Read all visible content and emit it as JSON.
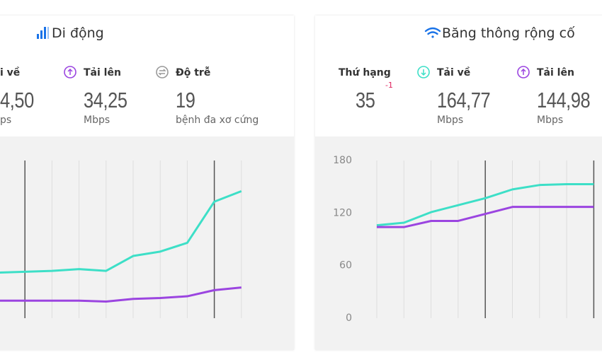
{
  "panels": [
    {
      "title": "Di động",
      "stats": [
        {
          "label": "i về",
          "value": "4,50",
          "unit": "ps"
        },
        {
          "label": "Tải lên",
          "value": "34,25",
          "unit": "Mbps"
        },
        {
          "label": "Độ trễ",
          "value": "19",
          "unit": "bệnh đa xơ cứng"
        }
      ]
    },
    {
      "title": "Băng thông rộng cố",
      "rank": {
        "label": "Thứ hạng",
        "value": "35",
        "change": "-1"
      },
      "stats": [
        {
          "label": "Tải về",
          "value": "164,77",
          "unit": "Mbps"
        },
        {
          "label": "Tải lên",
          "value": "144,98",
          "unit": "Mbps"
        }
      ]
    }
  ],
  "chart_data": [
    {
      "type": "line",
      "categories": [
        null,
        null,
        null,
        null,
        null,
        null,
        null,
        null,
        null,
        null
      ],
      "ylim": [
        0,
        180
      ],
      "grid": true,
      "series": [
        {
          "color": "#3ddfc7",
          "values": [
            52,
            53,
            54,
            56,
            54,
            71,
            76,
            86,
            133,
            145
          ]
        },
        {
          "color": "#9b45e0",
          "values": [
            20,
            20,
            20,
            20,
            19,
            22,
            23,
            25,
            32,
            35
          ]
        }
      ]
    },
    {
      "type": "line",
      "categories": [
        null,
        null,
        null,
        null,
        null,
        null,
        null,
        null,
        null
      ],
      "ylim": [
        0,
        180
      ],
      "yticks": [
        0,
        60,
        120,
        180
      ],
      "grid": true,
      "series": [
        {
          "color": "#3ddfc7",
          "values": [
            106,
            109,
            121,
            129,
            137,
            147,
            152,
            153,
            153
          ]
        },
        {
          "color": "#9b45e0",
          "values": [
            104,
            104,
            111,
            111,
            119,
            127,
            127,
            127,
            127
          ]
        }
      ]
    }
  ]
}
